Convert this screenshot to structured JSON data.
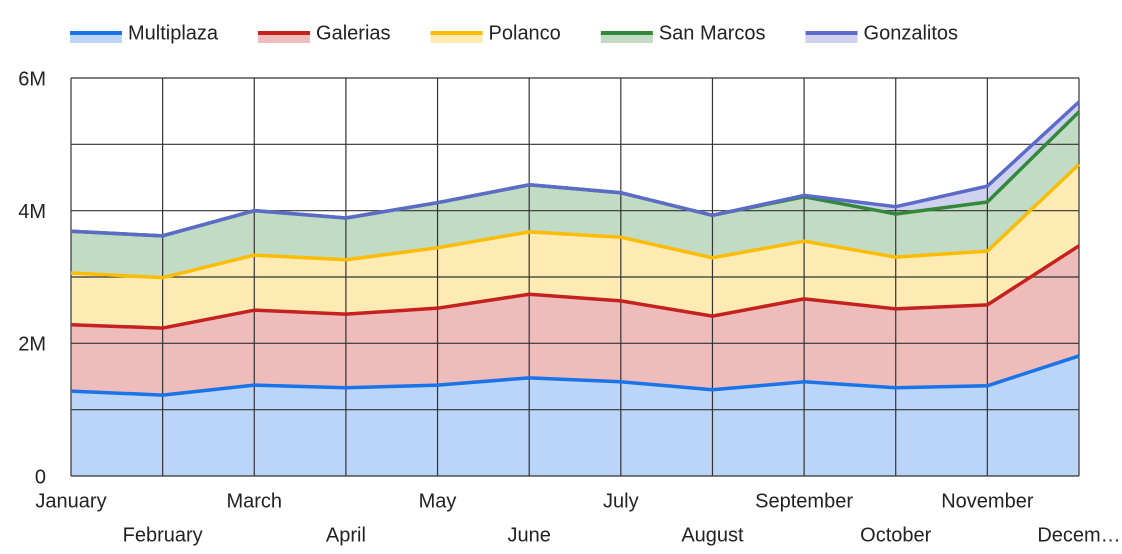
{
  "chart_data": {
    "type": "stacked_area",
    "categories": [
      "January",
      "February",
      "March",
      "April",
      "May",
      "June",
      "July",
      "August",
      "September",
      "October",
      "November",
      "Decem…"
    ],
    "series": [
      {
        "name": "Multiplaza",
        "color": "#1a73e8",
        "values": [
          1280000,
          1220000,
          1370000,
          1330000,
          1370000,
          1480000,
          1420000,
          1300000,
          1420000,
          1330000,
          1360000,
          1810000
        ]
      },
      {
        "name": "Galerias",
        "color": "#c5221f",
        "values": [
          1000000,
          1010000,
          1130000,
          1110000,
          1160000,
          1260000,
          1220000,
          1110000,
          1250000,
          1190000,
          1220000,
          1660000
        ]
      },
      {
        "name": "Polanco",
        "color": "#fbbc04",
        "values": [
          780000,
          760000,
          830000,
          820000,
          910000,
          940000,
          960000,
          880000,
          870000,
          780000,
          810000,
          1230000
        ]
      },
      {
        "name": "San Marcos",
        "color": "#34883a",
        "values": [
          630000,
          630000,
          670000,
          630000,
          680000,
          710000,
          670000,
          640000,
          670000,
          650000,
          740000,
          790000
        ]
      },
      {
        "name": "Gonzalitos",
        "color": "#5c6bc8",
        "values": [
          0,
          0,
          0,
          0,
          0,
          0,
          0,
          0,
          20000,
          110000,
          240000,
          150000
        ]
      }
    ],
    "ylim": [
      0,
      6000000
    ],
    "yticks": [
      0,
      {
        "value": 2000000,
        "label": "2M"
      },
      {
        "value": 4000000,
        "label": "4M"
      },
      {
        "value": 6000000,
        "label": "6M"
      }
    ],
    "y_minor_ticks": [
      1000000,
      3000000,
      5000000
    ],
    "grid": true,
    "legend": "top"
  }
}
